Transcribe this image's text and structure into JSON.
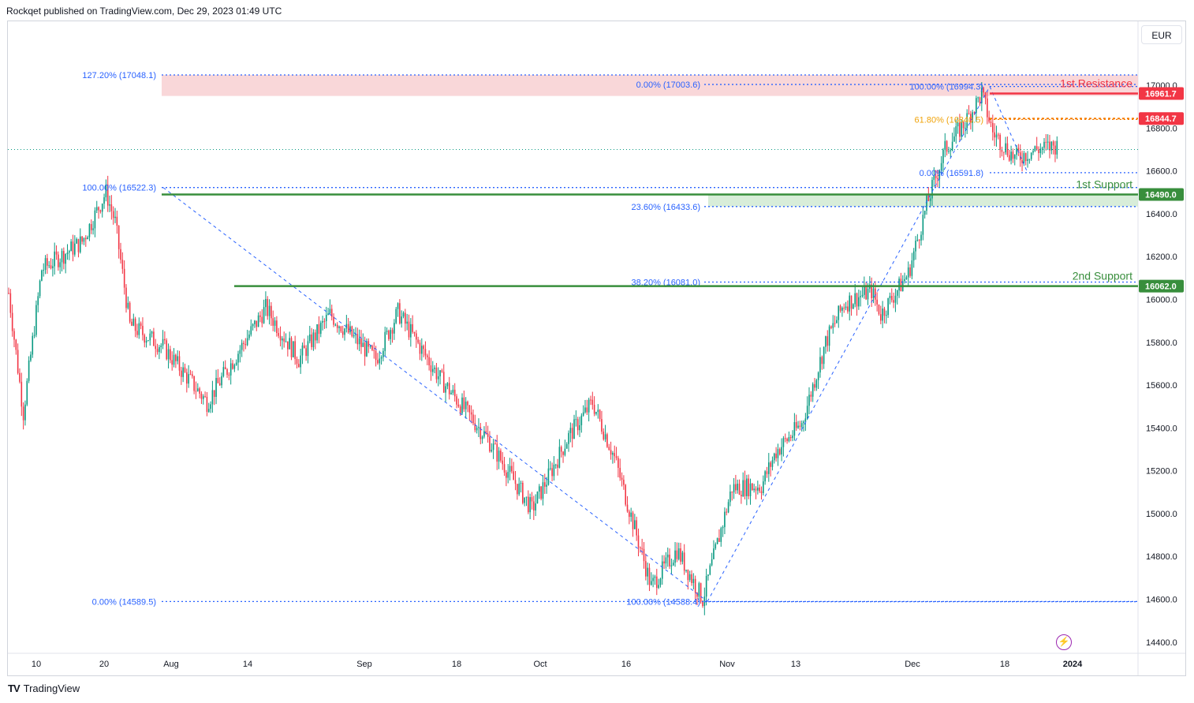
{
  "header": {
    "publish_text": "Rockqet published on TradingView.com, Dec 29, 2023 01:49 UTC"
  },
  "toolbar": {
    "currency": "EUR"
  },
  "footer": {
    "brand": "TradingView"
  },
  "chart_data": {
    "type": "candlestick",
    "ylim": [
      14300,
      17200
    ],
    "yticks": [
      14400,
      14600,
      14800,
      15000,
      15200,
      15400,
      15600,
      15800,
      16000,
      16200,
      16400,
      16600,
      16800,
      17000
    ],
    "ytick_labels": [
      "14400.0",
      "14600.0",
      "14800.0",
      "15000.0",
      "15200.0",
      "15400.0",
      "15600.0",
      "15800.0",
      "16000.0",
      "16200.0",
      "16400.0",
      "16600.0",
      "16800.0",
      "17000.0"
    ],
    "xticks": [
      {
        "label": "10",
        "bold": false
      },
      {
        "label": "20",
        "bold": false
      },
      {
        "label": "Aug",
        "bold": false
      },
      {
        "label": "14",
        "bold": false
      },
      {
        "label": "Sep",
        "bold": false
      },
      {
        "label": "18",
        "bold": false
      },
      {
        "label": "Oct",
        "bold": false
      },
      {
        "label": "16",
        "bold": false
      },
      {
        "label": "Nov",
        "bold": false
      },
      {
        "label": "13",
        "bold": false
      },
      {
        "label": "Dec",
        "bold": false
      },
      {
        "label": "18",
        "bold": false
      },
      {
        "label": "2024",
        "bold": true
      }
    ],
    "anchors": [
      [
        0,
        16030
      ],
      [
        8,
        15470
      ],
      [
        18,
        16140
      ],
      [
        40,
        16270
      ],
      [
        53,
        16500
      ],
      [
        58,
        16360
      ],
      [
        66,
        15880
      ],
      [
        84,
        15780
      ],
      [
        108,
        15520
      ],
      [
        140,
        15960
      ],
      [
        158,
        15720
      ],
      [
        175,
        15930
      ],
      [
        200,
        15720
      ],
      [
        212,
        15940
      ],
      [
        235,
        15630
      ],
      [
        260,
        15360
      ],
      [
        285,
        15020
      ],
      [
        305,
        15360
      ],
      [
        318,
        15520
      ],
      [
        330,
        15260
      ],
      [
        350,
        14660
      ],
      [
        364,
        14830
      ],
      [
        378,
        14600
      ],
      [
        394,
        15120
      ],
      [
        410,
        15130
      ],
      [
        418,
        15290
      ],
      [
        432,
        15420
      ],
      [
        445,
        15800
      ],
      [
        455,
        15980
      ],
      [
        470,
        16040
      ],
      [
        475,
        15930
      ],
      [
        490,
        16120
      ],
      [
        500,
        16440
      ],
      [
        510,
        16700
      ],
      [
        522,
        16840
      ],
      [
        530,
        16960
      ],
      [
        536,
        16780
      ],
      [
        548,
        16660
      ],
      [
        560,
        16700
      ],
      [
        572,
        16720
      ]
    ],
    "current_price": 16700,
    "horizontal_levels": [
      {
        "value": 16961.7,
        "label": "16961.7",
        "color": "#f23645"
      },
      {
        "value": 16844.7,
        "label": "16844.7",
        "color": "#f23645"
      },
      {
        "value": 16490.0,
        "label": "16490.0",
        "color": "#388e3c"
      },
      {
        "value": 16062.0,
        "label": "16062.0",
        "color": "#388e3c"
      }
    ],
    "annotations": {
      "resistance_1": "1st Resistance",
      "support_1": "1st Support",
      "support_2": "2nd Support"
    },
    "fib_labels": [
      {
        "text": "127.20% (17048.1)",
        "value": 17048.1,
        "side": "left"
      },
      {
        "text": "100.00% (16522.3)",
        "value": 16522.3,
        "side": "left"
      },
      {
        "text": "0.00% (14589.5)",
        "value": 14589.5,
        "side": "left"
      },
      {
        "text": "0.00% (17003.6)",
        "value": 17003.6,
        "side": "mid"
      },
      {
        "text": "23.60% (16433.6)",
        "value": 16433.6,
        "side": "mid"
      },
      {
        "text": "38.20% (16081.0)",
        "value": 16081.0,
        "side": "mid"
      },
      {
        "text": "100.00% (14588.4)",
        "value": 14588.4,
        "side": "mid"
      },
      {
        "text": "100.00% (16994.3)",
        "value": 16994.3,
        "side": "right"
      },
      {
        "text": "61.80% (16840.5)",
        "value": 16840.5,
        "side": "right",
        "color": "#f0a30a"
      },
      {
        "text": "0.00% (16591.8)",
        "value": 16591.8,
        "side": "right"
      }
    ],
    "colors": {
      "up": "#089981",
      "down": "#f23645",
      "fib": "#2962ff",
      "label_text": "#2962ff",
      "support": "#388e3c",
      "resistance": "#f23645"
    }
  }
}
